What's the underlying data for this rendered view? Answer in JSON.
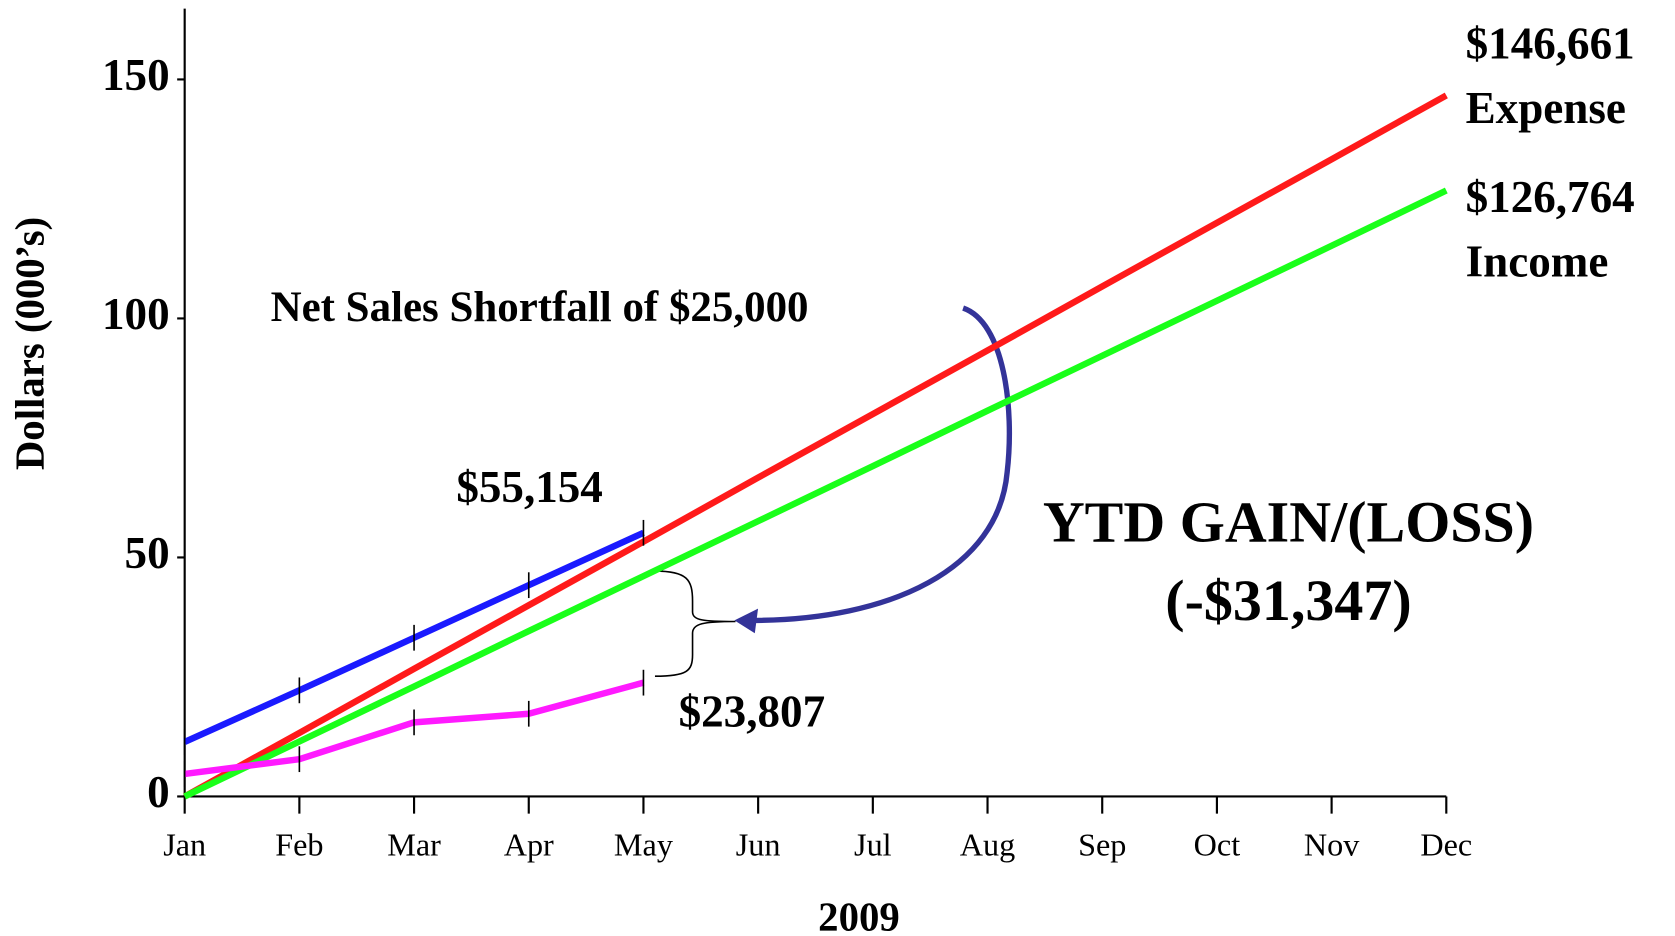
{
  "chart_data": {
    "type": "line",
    "categories": [
      "Jan",
      "Feb",
      "Mar",
      "Apr",
      "May",
      "Jun",
      "Jul",
      "Aug",
      "Sep",
      "Oct",
      "Nov",
      "Dec"
    ],
    "series": [
      {
        "name": "Expense",
        "color": "#ff1a1a",
        "values": [
          0,
          13.3,
          26.7,
          40,
          53.3,
          66.7,
          80,
          93.3,
          106.7,
          120,
          133.3,
          146.661
        ]
      },
      {
        "name": "Income",
        "color": "#1aff1a",
        "values": [
          0,
          11.5,
          23.0,
          34.6,
          46.1,
          57.6,
          69.1,
          80.7,
          92.2,
          103.7,
          115.2,
          126.764
        ]
      },
      {
        "color": "#1a1aff",
        "values": [
          11.4,
          22.2,
          33.2,
          44.2,
          55.154,
          null,
          null,
          null,
          null,
          null,
          null,
          null
        ]
      },
      {
        "color": "#ff1aff",
        "values": [
          4.7,
          7.8,
          15.5,
          17.3,
          23.807,
          null,
          null,
          null,
          null,
          null,
          null,
          null
        ]
      }
    ],
    "annotations": [
      "$146,661",
      "$126,764",
      "$55,154",
      "$23,807",
      "Net Sales Shortfall of $25,000",
      "YTD GAIN/(LOSS)",
      "(-$31,347)"
    ],
    "x_label": "2009",
    "y_label": "Dollars (000’s)",
    "ylim": [
      0,
      150
    ],
    "yticks": [
      0,
      50,
      100,
      150
    ]
  }
}
